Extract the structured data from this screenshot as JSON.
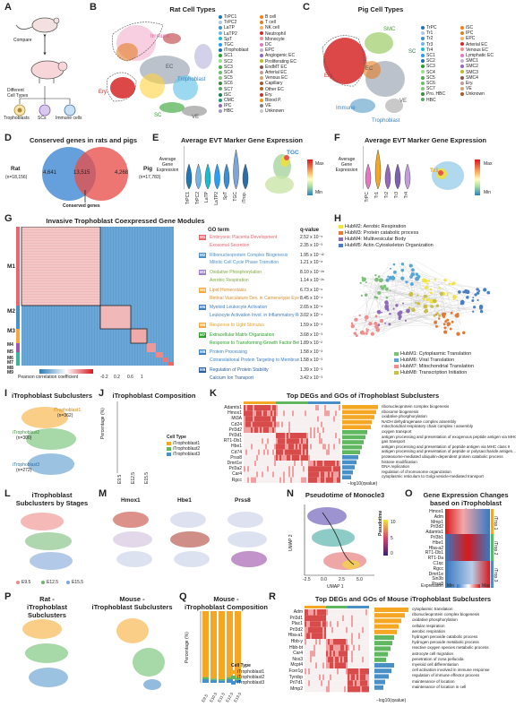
{
  "panels": [
    "A",
    "B",
    "C",
    "D",
    "E",
    "F",
    "G",
    "H",
    "I",
    "J",
    "K",
    "L",
    "M",
    "N",
    "O",
    "P",
    "Q",
    "R"
  ],
  "A": {
    "compare": "Compare",
    "different": "Different\nCell Types",
    "types": [
      "Trophoblasts",
      "SCs",
      "Immune cells"
    ]
  },
  "B": {
    "title": "Rat Cell Types",
    "legend1": [
      "TrPC1",
      "TrPC2",
      "LaTP",
      "LaTP2",
      "SpT",
      "TGC",
      "iTrophoblast",
      "SC1",
      "SC2",
      "SC3",
      "SC4",
      "SC5",
      "SC6",
      "SC7",
      "iSC",
      "CMC",
      "IPC",
      "HBC"
    ],
    "legend2": [
      "B cell",
      "T cell",
      "NK cell",
      "Neutrophil",
      "Monocyte",
      "DC",
      "EPC",
      "Angiogenic EC",
      "Proliferating EC",
      "EndMT EC",
      "Arterial EC",
      "Venous EC",
      "Capillary",
      "Other EC",
      "Ery.",
      "Blood P.",
      "VE",
      "Unknown"
    ],
    "labels": [
      "Immune",
      "EC",
      "Trophoblast",
      "Ery.",
      "SC",
      "VE"
    ]
  },
  "C": {
    "title": "Pig Cell Types",
    "legend1": [
      "TrPC",
      "Tr1",
      "Tr2",
      "Tr3",
      "Tr4",
      "SC1",
      "SC2",
      "SC3",
      "SC4",
      "SC5",
      "SC6",
      "SC7",
      "Pro. HBC",
      "HBC"
    ],
    "legend2": [
      "iSC",
      "IPC",
      "EPC",
      "Arterial EC",
      "Venous EC",
      "Lymphatic EC",
      "SMC1",
      "SMC2",
      "SMC3",
      "SMC4",
      "Ery.",
      "VE",
      "Unknown"
    ],
    "labels": [
      "SMC",
      "SC",
      "EC",
      "Ery.",
      "Immune",
      "VE",
      "Trophoblast"
    ]
  },
  "D": {
    "title": "Conserved genes in rats and pigs",
    "rat": "Rat",
    "rat_n": "(n=18,156)",
    "pig": "Pig",
    "pig_n": "(n=17,783)",
    "rat_only": "4,641",
    "shared": "13,515",
    "pig_only": "4,268",
    "caption": "Conserved genes"
  },
  "E": {
    "title": "Average EVT Marker Gene Expression",
    "ylabel": "Average Gene\nExpression",
    "cats": [
      "TrPC1",
      "TrPC2",
      "LaTP",
      "LaTP2",
      "SpT",
      "TGC",
      "iTrop."
    ],
    "tag": "TGC",
    "max": "Max",
    "min": "Min"
  },
  "F": {
    "title": "Average EVT Marker Gene Expression",
    "ylabel": "Average Gene\nExpression",
    "cats": [
      "TrPC",
      "Tr1",
      "Tr2",
      "Tr3",
      "Tr4"
    ],
    "tag": "Tr1",
    "max": "Max",
    "min": "Min"
  },
  "G": {
    "title": "Invasive Trophoblast Coexpressed Gene Modules",
    "modules": [
      "M1",
      "M2",
      "M3",
      "M4",
      "M5",
      "M6",
      "M7",
      "M8",
      "M9"
    ],
    "col_go": "GO term",
    "col_q": "q-value",
    "terms": [
      {
        "m": "M1",
        "t": "Embryonic Placenta Development",
        "q": "2.52 x 10⁻⁵"
      },
      {
        "m": "M1",
        "t": "Exosomal Secretion",
        "q": "2.35 x 10⁻³"
      },
      {
        "m": "M2",
        "t": "Ribonucleoprotein Complex Biogenesis",
        "q": "1.95 x 10⁻¹²"
      },
      {
        "m": "M2",
        "t": "Mitotic Cell Cycle Phase Transition",
        "q": "1.21 x 10⁻⁸"
      },
      {
        "m": "M3",
        "t": "Oxidative Phosphorylation",
        "q": "8.10 x 10⁻²⁸"
      },
      {
        "m": "M3",
        "t": "Aerobic Respiration",
        "q": "1.14 x 10⁻²⁶"
      },
      {
        "m": "M4",
        "t": "Lipid Homeostasis",
        "q": "6.73 x 10⁻⁶"
      },
      {
        "m": "M4",
        "t": "Retinal Vasculature Dev. in Camera-type Eye",
        "q": "8.45 x 10⁻⁴"
      },
      {
        "m": "M5",
        "t": "Myeloid Leukocyte Activation",
        "q": "2.65 x 10⁻⁶"
      },
      {
        "m": "M5",
        "t": "Leukocyte Activation Invol. in Inflammatory Res.",
        "q": "3.02 x 10⁻⁴"
      },
      {
        "m": "M6",
        "t": "Response to Light Stimulus",
        "q": "1.59 x 10⁻³"
      },
      {
        "m": "M7",
        "t": "Extracellular Matrix Organization",
        "q": "3.68 x 10⁻³"
      },
      {
        "m": "M7",
        "t": "Response to Transforming Growth Factor Beta",
        "q": "1.89 x 10⁻²"
      },
      {
        "m": "M8",
        "t": "Protein Processing",
        "q": "1.58 x 10⁻³"
      },
      {
        "m": "M8",
        "t": "Cotranslational Protein Targeting to Membrane",
        "q": "1.58 x 10⁻³"
      },
      {
        "m": "M9",
        "t": "Regulation of Protein Stability",
        "q": "1.39 x 10⁻³"
      },
      {
        "m": "M9",
        "t": "Calcium Ion Transport",
        "q": "3.42 x 10⁻³"
      }
    ],
    "scale_label": "Pearson correlation coefficient",
    "ticks": [
      "-0.2",
      "0.2",
      "0.6",
      "1"
    ]
  },
  "H": {
    "legend_top": [
      "HubM2: Aerobic Respiration",
      "HubM3: Protein catabolic process",
      "HubM4: Multivesicular Body",
      "HubM5: Actin Cytoskeleton Organization"
    ],
    "legend_bot": [
      "HubM1: Cytoplasmic Translation",
      "HubM6: Viral Translation",
      "HubM7: Mitochondrial Translation",
      "HubM8: Transcription Initiation"
    ]
  },
  "I": {
    "title": "iTrophoblast Subclusters",
    "labels": [
      "iTrophoblast1",
      "iTrophoblast2",
      "iTrophoblast3"
    ],
    "n": [
      "(n=362)",
      "(n=300)",
      "(n=272)"
    ]
  },
  "J": {
    "title": "iTrophoblast Composition",
    "ylabel": "Percentage (%)",
    "legend_title": "Cell Type",
    "legend": [
      "iTrophoblast1",
      "iTrophoblast2",
      "iTrophoblast3"
    ],
    "stages": [
      "E9.5",
      "E12.5",
      "E15.5"
    ]
  },
  "K": {
    "title": "Top DEGs and GOs of iTrophoblast Subclusters",
    "genes": [
      "Adamts1",
      "Hmox1",
      "Mt3A",
      "Cd24",
      "Prl3d2",
      "Prl3d1",
      "RT1-Db1",
      "Hbe1",
      "Cd74",
      "Prss8",
      "Dmrt1e",
      "Prl3a2",
      "Car4",
      "Rgcc"
    ],
    "go": [
      "ribonucleoprotein complex biogenesis",
      "ribosome biogenesis",
      "oxidative phosphorylation",
      "NADH dehydrogenase complex assembly",
      "mitochondrial respiratory chain complex I assembly",
      "oxygen transport",
      "antigen processing and presentation of exogenous peptide antigen via MHC...",
      "gas transport",
      "antigen processing and presentation of peptide antigen via MHC class II",
      "antigen processing and presentation of peptide or polysaccharide antigen...",
      "proteasome-mediated ubiquitin-dependent protein catabolic process",
      "histone modification",
      "DNA replication",
      "regulation of chromosome organization",
      "cytoplasmic reticulum to Golgi vesicle-mediated transport"
    ],
    "xlabel": "−log10(qvalue)"
  },
  "L": {
    "title": "iTrophoblast\nSubclusters by Stages",
    "legend": [
      "E9.5",
      "E12.5",
      "E15.5"
    ]
  },
  "M": {
    "genes": [
      "Hmox1",
      "Hbe1",
      "Prss8"
    ]
  },
  "N": {
    "title": "Pseudotime of Monocle3",
    "xlabel": "UMAP 1",
    "ylabel": "UMAP 2",
    "xticks": [
      "-2.5",
      "0.0",
      "2.5",
      "5.0"
    ],
    "legend_title": "Pseudotime",
    "legend_ticks": [
      "10",
      "5",
      "0"
    ]
  },
  "O": {
    "title": "Gene Expression Changes\nbased on iTrophoblast Pseudotime",
    "genes": [
      "Hmox1",
      "Adm",
      "Mmp1",
      "Prl3d2",
      "Adamts1",
      "Prl3b1",
      "Hbe1",
      "Hba-a2",
      "RT1-Db1",
      "RT1-Da",
      "C1qc",
      "Rgcc",
      "Dmrt1e",
      "Sin3b",
      "Prss8"
    ],
    "groups": [
      "iTrop.1",
      "iTrop.2",
      "iTrop.3"
    ],
    "scale": [
      "Expression",
      "Min",
      "Max"
    ]
  },
  "P": {
    "title_a": "Rat -\niTrophoblast Subclusters",
    "title_b": "Mouse -\niTrophoblast Subclusters"
  },
  "Q": {
    "title": "Mouse -\niTrophoblast Composition",
    "ylabel": "Percentage (%)",
    "legend_title": "Cell Type",
    "legend": [
      "iTrophoblast1",
      "iTrophoblast2",
      "iTrophoblast3"
    ],
    "stages": [
      "E9.5",
      "E10.5",
      "E11.5",
      "E12.5",
      "E13.5"
    ]
  },
  "R": {
    "title": "Top DEGs and GOs of Mouse iTrophoblast Subclusters",
    "genes": [
      "Adm",
      "Prl3d1",
      "Plac1",
      "Prl3d2",
      "Hba-a1",
      "Hbb-y",
      "Hbb-bt",
      "Car4",
      "Nos3",
      "Mcpt4",
      "Fcer1g",
      "Tyrobp",
      "Prl7d1",
      "Mmp2"
    ],
    "go": [
      "cytoplasmic translation",
      "ribonucleoprotein complex biogenesis",
      "oxidative phosphorylation",
      "cellular respiration",
      "aerobic respiration",
      "hydrogen peroxide catabolic process",
      "hydrogen peroxide metabolic process",
      "reactive oxygen species metabolic process",
      "astrocyte cell migration",
      "penetration of zona pellucida",
      "myeloid cell differentiation",
      "cell activation involved in immune response",
      "regulation of immune effector process",
      "maintenance of location",
      "maintenance of location in cell"
    ],
    "xlabel": "−log10(qvalue)"
  },
  "colors": {
    "ratblue": "#4a8fd6",
    "pigred": "#e8544f",
    "green": "#4caf50",
    "orange": "#f0a030",
    "it1": "#f5a623",
    "it2": "#5fb85f",
    "it3": "#4a90c8"
  }
}
